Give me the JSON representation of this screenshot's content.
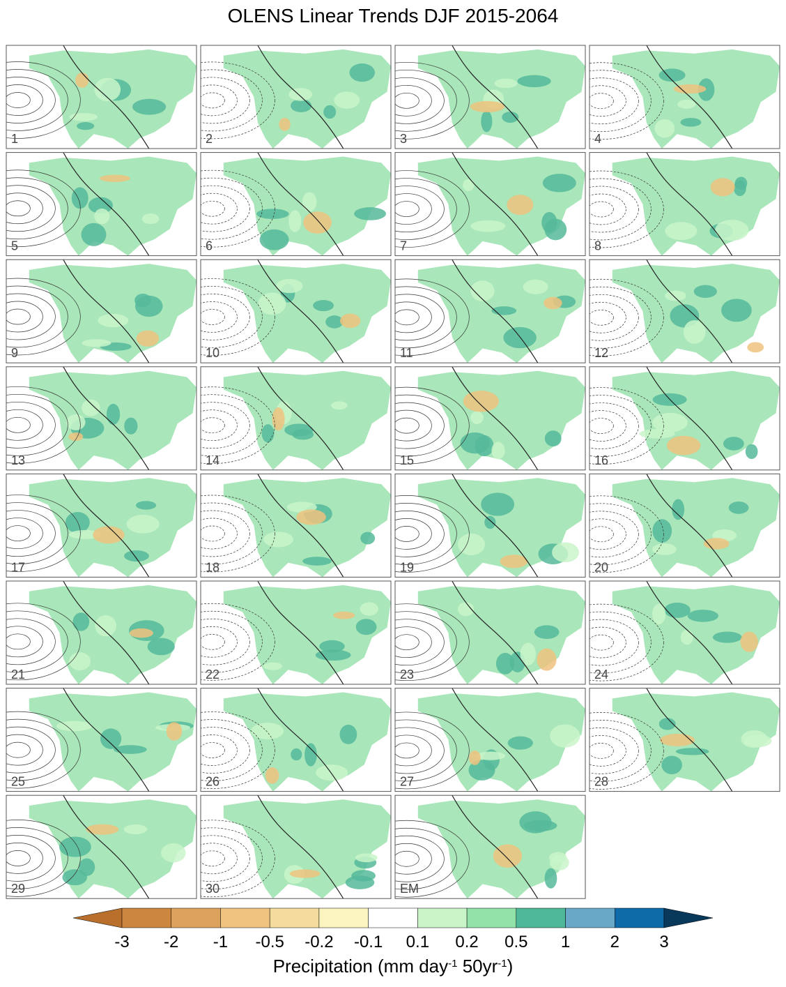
{
  "title": "OLENS Linear Trends DJF 2015-2064",
  "panels": [
    "1",
    "2",
    "3",
    "4",
    "5",
    "6",
    "7",
    "8",
    "9",
    "10",
    "11",
    "12",
    "13",
    "14",
    "15",
    "16",
    "17",
    "18",
    "19",
    "20",
    "21",
    "22",
    "23",
    "24",
    "25",
    "26",
    "27",
    "28",
    "29",
    "30",
    "EM"
  ],
  "colorbar": {
    "ticks": [
      -3,
      -2,
      -1,
      -0.5,
      -0.2,
      -0.1,
      0.1,
      0.2,
      0.5,
      1,
      2,
      3
    ],
    "colors": [
      "#b8702c",
      "#cd8640",
      "#dda35e",
      "#efc480",
      "#f4dc9e",
      "#fcf4bf",
      "#ffffff",
      "#c9f5c9",
      "#92e1a8",
      "#4fb898",
      "#6aa8c8",
      "#0f6aa8",
      "#08385a"
    ],
    "label": [
      {
        "text": "Precipitation (mm day"
      },
      {
        "text": "-1",
        "sup": true
      },
      {
        "text": " 50yr"
      },
      {
        "text": "-1",
        "sup": true
      },
      {
        "text": ")"
      }
    ]
  }
}
